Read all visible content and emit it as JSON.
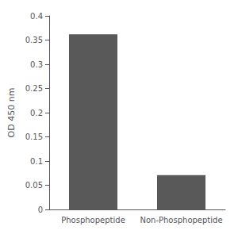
{
  "chart_data": {
    "type": "bar",
    "categories": [
      "Phosphopeptide",
      "Non-Phosphopeptide"
    ],
    "values": [
      0.362,
      0.071
    ],
    "color": "#595959",
    "ylabel": "OD 450 nm",
    "ylim": [
      0,
      0.4
    ],
    "yticks": [
      0,
      0.05,
      0.1,
      0.15,
      0.2,
      0.25,
      0.3,
      0.35,
      0.4
    ],
    "grid": false
  }
}
